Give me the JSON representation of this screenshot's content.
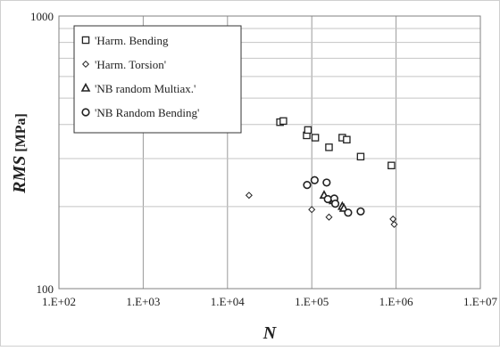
{
  "chart_data": {
    "type": "scatter",
    "xscale": "log",
    "yscale": "log",
    "xlim": [
      100,
      10000000
    ],
    "ylim": [
      100,
      1000
    ],
    "grid": true,
    "legend_position": "top-left",
    "xlabel_var": "N",
    "ylabel_var": "RMS",
    "ylabel_unit": "[MPa]",
    "x_tick_labels": [
      "1.E+02",
      "1.E+03",
      "1.E+04",
      "1.E+05",
      "1.E+06",
      "1.E+07"
    ],
    "y_tick_labels": [
      "100",
      "1000"
    ],
    "series": [
      {
        "name": "'Harm. Bending",
        "marker": "square",
        "points": [
          [
            42000,
            408
          ],
          [
            46000,
            412
          ],
          [
            87000,
            365
          ],
          [
            90000,
            382
          ],
          [
            110000,
            358
          ],
          [
            160000,
            330
          ],
          [
            230000,
            358
          ],
          [
            260000,
            352
          ],
          [
            380000,
            305
          ],
          [
            880000,
            283
          ]
        ]
      },
      {
        "name": "'Harm. Torsion'",
        "marker": "diamond",
        "points": [
          [
            18000,
            220
          ],
          [
            100000,
            195
          ],
          [
            160000,
            183
          ],
          [
            920000,
            180
          ],
          [
            950000,
            172
          ]
        ]
      },
      {
        "name": "'NB random Multiax.'",
        "marker": "triangle",
        "points": [
          [
            140000,
            220
          ],
          [
            180000,
            210
          ],
          [
            230000,
            200
          ],
          [
            240000,
            197
          ]
        ]
      },
      {
        "name": "'NB Random Bending'",
        "marker": "circle",
        "points": [
          [
            88000,
            240
          ],
          [
            108000,
            250
          ],
          [
            150000,
            245
          ],
          [
            155000,
            213
          ],
          [
            185000,
            214
          ],
          [
            190000,
            205
          ],
          [
            270000,
            190
          ],
          [
            380000,
            192
          ]
        ]
      }
    ]
  }
}
